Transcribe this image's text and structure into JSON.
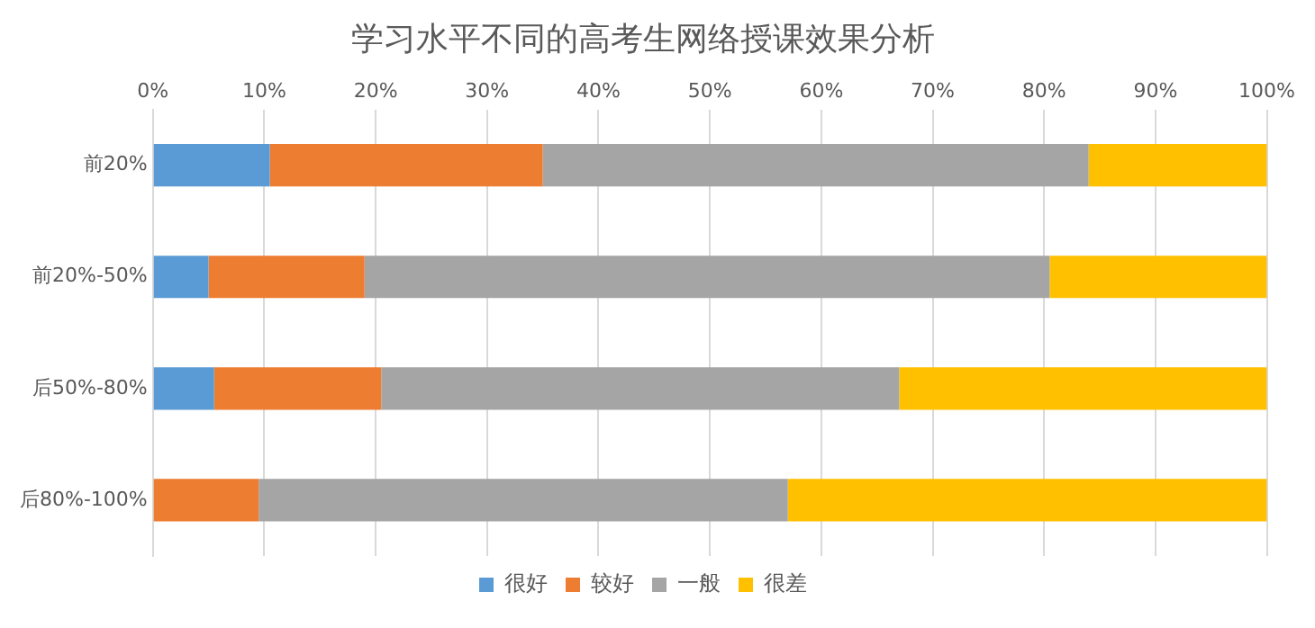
{
  "chart_data": {
    "type": "bar",
    "title": "学习水平不同的高考生网络授课效果分析",
    "orientation": "horizontal",
    "stacked": true,
    "categories": [
      "前20%",
      "前20%-50%",
      "后50%-80%",
      "后80%-100%"
    ],
    "series": [
      {
        "name": "很好",
        "color": "#5b9bd5",
        "values": [
          10.5,
          5,
          5.5,
          0
        ]
      },
      {
        "name": "较好",
        "color": "#ed7d31",
        "values": [
          24.5,
          14,
          15,
          9.5
        ]
      },
      {
        "name": "一般",
        "color": "#a5a5a5",
        "values": [
          49,
          61.5,
          46.5,
          47.5
        ]
      },
      {
        "name": "很差",
        "color": "#ffc000",
        "values": [
          16,
          19.5,
          33,
          43
        ]
      }
    ],
    "xlim": [
      0,
      100
    ],
    "xticks": [
      {
        "value": 0,
        "label": "0%"
      },
      {
        "value": 10,
        "label": "10%"
      },
      {
        "value": 20,
        "label": "20%"
      },
      {
        "value": 30,
        "label": "30%"
      },
      {
        "value": 40,
        "label": "40%"
      },
      {
        "value": 50,
        "label": "50%"
      },
      {
        "value": 60,
        "label": "60%"
      },
      {
        "value": 70,
        "label": "70%"
      },
      {
        "value": 80,
        "label": "80%"
      },
      {
        "value": 90,
        "label": "90%"
      },
      {
        "value": 100,
        "label": "100%"
      }
    ],
    "grid": "x",
    "legend": "bottom"
  }
}
